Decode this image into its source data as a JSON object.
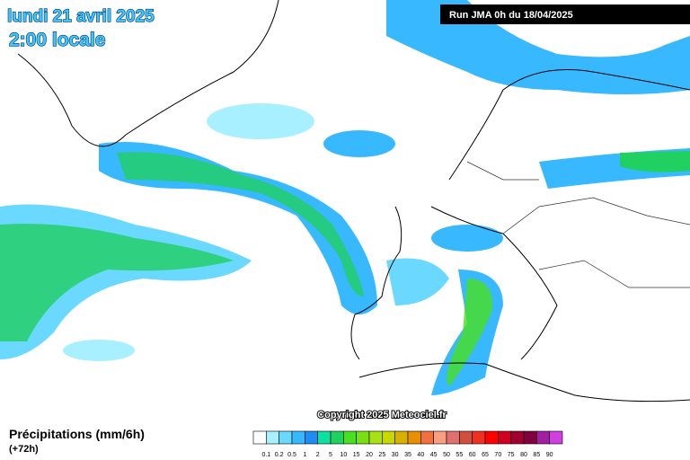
{
  "header": {
    "date": "lundi 21 avril 2025",
    "time": "2:00 locale",
    "run": "Run JMA 0h du 18/04/2025"
  },
  "copyright": "Copyright 2025 Meteociel.fr",
  "footer": {
    "title": "Précipitations (mm/6h)",
    "lead": "(+72h)"
  },
  "legend": {
    "colors": [
      "#ffffff",
      "#a8f0ff",
      "#6ad8ff",
      "#38b8ff",
      "#1e8cf0",
      "#0fe0a0",
      "#20d060",
      "#48e020",
      "#78e010",
      "#a8e010",
      "#c8d800",
      "#d8b000",
      "#e89000",
      "#f07040",
      "#f8a080",
      "#e07070",
      "#d05040",
      "#f03020",
      "#ff0000",
      "#d00020",
      "#a00030",
      "#800040",
      "#a020a0",
      "#d040e0"
    ],
    "labels": [
      "0.1",
      "0.2",
      "0.5",
      "1",
      "2",
      "5",
      "10",
      "15",
      "20",
      "25",
      "30",
      "35",
      "40",
      "45",
      "50",
      "55",
      "60",
      "65",
      "70",
      "75",
      "80",
      "85",
      "90"
    ]
  }
}
